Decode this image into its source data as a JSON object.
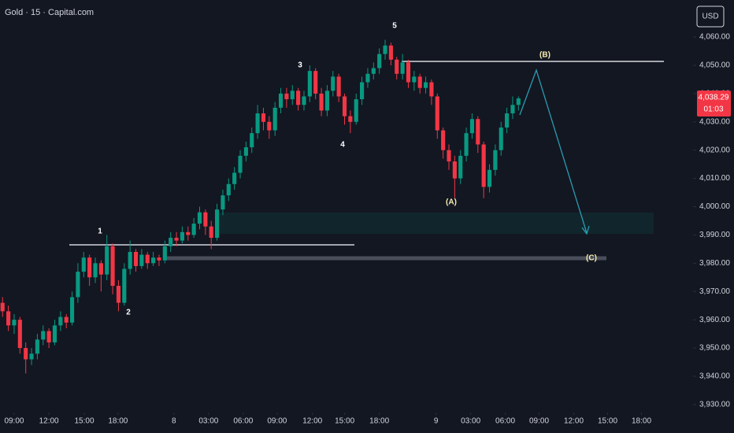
{
  "chart_data": {
    "type": "candlestick",
    "title": "Gold · 15 · Capital.com",
    "currency": "USD",
    "up_color": "#089981",
    "down_color": "#f23645",
    "grid": false,
    "x": [
      -1.0,
      -0.5,
      0.0,
      0.5,
      1.0,
      1.5,
      2.0,
      2.5,
      3.0,
      3.5,
      4.0,
      4.5,
      5.0,
      5.5,
      6.0,
      6.5,
      7.0,
      7.5,
      8.0,
      8.5,
      9.0,
      9.5,
      10.0,
      10.5,
      11.0,
      11.5,
      12.0,
      12.5,
      13.0,
      13.5,
      14.0,
      14.5,
      15.0,
      15.5,
      16.0,
      16.5,
      17.0,
      17.5,
      18.0,
      18.5,
      19.0,
      19.5,
      20.0,
      20.5,
      21.0,
      21.5,
      22.0,
      22.5,
      23.0,
      23.5,
      24.0,
      24.5,
      25.0,
      25.5,
      26.0,
      26.5,
      27.0,
      27.5,
      28.0,
      28.5,
      29.0,
      29.5,
      30.0,
      30.5,
      31.0,
      31.5,
      32.0,
      32.5,
      33.0,
      33.5,
      34.0,
      34.5,
      35.0,
      35.5,
      36.0,
      36.5,
      37.0,
      37.5,
      38.0,
      38.5,
      39.0,
      39.5,
      40.0,
      40.5,
      41.0,
      41.5,
      42.0,
      42.5,
      43.0,
      43.5
    ],
    "open": [
      3966,
      3963,
      3958,
      3960,
      3950,
      3946,
      3948,
      3953,
      3956,
      3952,
      3958,
      3961,
      3959,
      3968,
      3977,
      3982,
      3975,
      3980,
      3976,
      3986,
      3972,
      3966,
      3978,
      3984,
      3979,
      3983,
      3980,
      3982,
      3981,
      3986,
      3989,
      3988,
      3991,
      3990,
      3994,
      3998,
      3993,
      3989,
      3999,
      4004,
      4008,
      4012,
      4018,
      4021,
      4026,
      4033,
      4030,
      4027,
      4035,
      4040,
      4038,
      4041,
      4036,
      4039,
      4048,
      4040,
      4034,
      4041,
      4046,
      4039,
      4032,
      4030,
      4038,
      4044,
      4047,
      4049,
      4054,
      4057,
      4052,
      4047,
      4051,
      4044,
      4046,
      4042,
      4044,
      4039,
      4027,
      4020,
      4016,
      4010,
      4018,
      4026,
      4031,
      4022,
      4007,
      4013,
      4020,
      4028,
      4033,
      4036
    ],
    "high": [
      3968,
      3965,
      3962,
      3961,
      3952,
      3950,
      3955,
      3958,
      3957,
      3960,
      3963,
      3962,
      3970,
      3980,
      3984,
      3983,
      3982,
      3981,
      3990,
      3987,
      3974,
      3980,
      3988,
      3985,
      3985,
      3984,
      3984,
      3983,
      3988,
      3991,
      3991,
      3993,
      3993,
      3996,
      4000,
      3999,
      3995,
      4001,
      4006,
      4010,
      4014,
      4020,
      4023,
      4028,
      4036,
      4035,
      4032,
      4037,
      4042,
      4042,
      4043,
      4042,
      4041,
      4050,
      4049,
      4042,
      4043,
      4048,
      4047,
      4040,
      4034,
      4040,
      4046,
      4049,
      4051,
      4056,
      4059,
      4058,
      4053,
      4054,
      4052,
      4048,
      4047,
      4046,
      4045,
      4040,
      4028,
      4022,
      4018,
      4020,
      4028,
      4033,
      4032,
      4023,
      4015,
      4022,
      4030,
      4035,
      4039,
      4039
    ],
    "low": [
      3961,
      3956,
      3955,
      3948,
      3941,
      3944,
      3946,
      3951,
      3950,
      3951,
      3956,
      3957,
      3958,
      3966,
      3975,
      3972,
      3973,
      3970,
      3974,
      3969,
      3963,
      3965,
      3976,
      3977,
      3978,
      3978,
      3979,
      3979,
      3980,
      3984,
      3986,
      3987,
      3988,
      3989,
      3992,
      3990,
      3985,
      3988,
      3997,
      4002,
      4006,
      4010,
      4016,
      4019,
      4024,
      4027,
      4024,
      4025,
      4033,
      4035,
      4036,
      4034,
      4034,
      4037,
      4038,
      4032,
      4032,
      4039,
      4037,
      4029,
      4026,
      4029,
      4036,
      4042,
      4045,
      4047,
      4052,
      4050,
      4045,
      4045,
      4042,
      4041,
      4040,
      4040,
      4036,
      4024,
      4017,
      4013,
      4003,
      4008,
      4016,
      4024,
      4019,
      4003,
      4005,
      4011,
      4018,
      4026,
      4031,
      4034
    ],
    "close": [
      3963,
      3958,
      3960,
      3950,
      3946,
      3948,
      3953,
      3956,
      3952,
      3958,
      3961,
      3959,
      3968,
      3977,
      3982,
      3975,
      3980,
      3976,
      3986,
      3972,
      3966,
      3978,
      3984,
      3979,
      3983,
      3980,
      3982,
      3981,
      3986,
      3989,
      3988,
      3991,
      3990,
      3994,
      3998,
      3993,
      3989,
      3999,
      4004,
      4008,
      4012,
      4018,
      4021,
      4026,
      4033,
      4030,
      4027,
      4035,
      4040,
      4038,
      4041,
      4036,
      4039,
      4048,
      4040,
      4034,
      4041,
      4046,
      4039,
      4032,
      4030,
      4038,
      4044,
      4047,
      4049,
      4054,
      4057,
      4052,
      4047,
      4051,
      4044,
      4046,
      4042,
      4044,
      4039,
      4027,
      4020,
      4016,
      4010,
      4018,
      4026,
      4031,
      4022,
      4007,
      4013,
      4020,
      4028,
      4033,
      4036,
      4038.29
    ],
    "xlim": [
      -1.22,
      57.2
    ],
    "xticks": [
      {
        "value": 0,
        "label": "09:00"
      },
      {
        "value": 3,
        "label": "12:00"
      },
      {
        "value": 6.05,
        "label": "15:00"
      },
      {
        "value": 8.96,
        "label": "18:00"
      },
      {
        "value": 13.78,
        "label": "8"
      },
      {
        "value": 16.77,
        "label": "03:00"
      },
      {
        "value": 19.76,
        "label": "06:00"
      },
      {
        "value": 22.68,
        "label": "09:00"
      },
      {
        "value": 25.73,
        "label": "12:00"
      },
      {
        "value": 28.51,
        "label": "15:00"
      },
      {
        "value": 31.5,
        "label": "18:00"
      },
      {
        "value": 36.39,
        "label": "9"
      },
      {
        "value": 39.38,
        "label": "03:00"
      },
      {
        "value": 42.36,
        "label": "06:00"
      },
      {
        "value": 45.28,
        "label": "09:00"
      },
      {
        "value": 48.27,
        "label": "12:00"
      },
      {
        "value": 51.19,
        "label": "15:00"
      },
      {
        "value": 54.11,
        "label": "18:00"
      }
    ],
    "ylim": [
      3928.3,
      4073.1
    ],
    "yticks": [
      {
        "value": 3930,
        "label": "3,930.00"
      },
      {
        "value": 3940,
        "label": "3,940.00"
      },
      {
        "value": 3950,
        "label": "3,950.00"
      },
      {
        "value": 3960,
        "label": "3,960.00"
      },
      {
        "value": 3970,
        "label": "3,970.00"
      },
      {
        "value": 3980,
        "label": "3,980.00"
      },
      {
        "value": 3990,
        "label": "3,990.00"
      },
      {
        "value": 4000,
        "label": "4,000.00"
      },
      {
        "value": 4010,
        "label": "4,010.00"
      },
      {
        "value": 4020,
        "label": "4,020.00"
      },
      {
        "value": 4030,
        "label": "4,030.00"
      },
      {
        "value": 4040,
        "label": "4,040.00"
      },
      {
        "value": 4050,
        "label": "4,050.00"
      },
      {
        "value": 4060,
        "label": "4,060.00"
      }
    ],
    "last_price": {
      "value": 4038.29,
      "label": "4,038.29"
    },
    "countdown": "01:03",
    "annotations": [
      "1",
      "2",
      "3",
      "4",
      "5",
      "(A)",
      "(B)",
      "(C)"
    ]
  }
}
